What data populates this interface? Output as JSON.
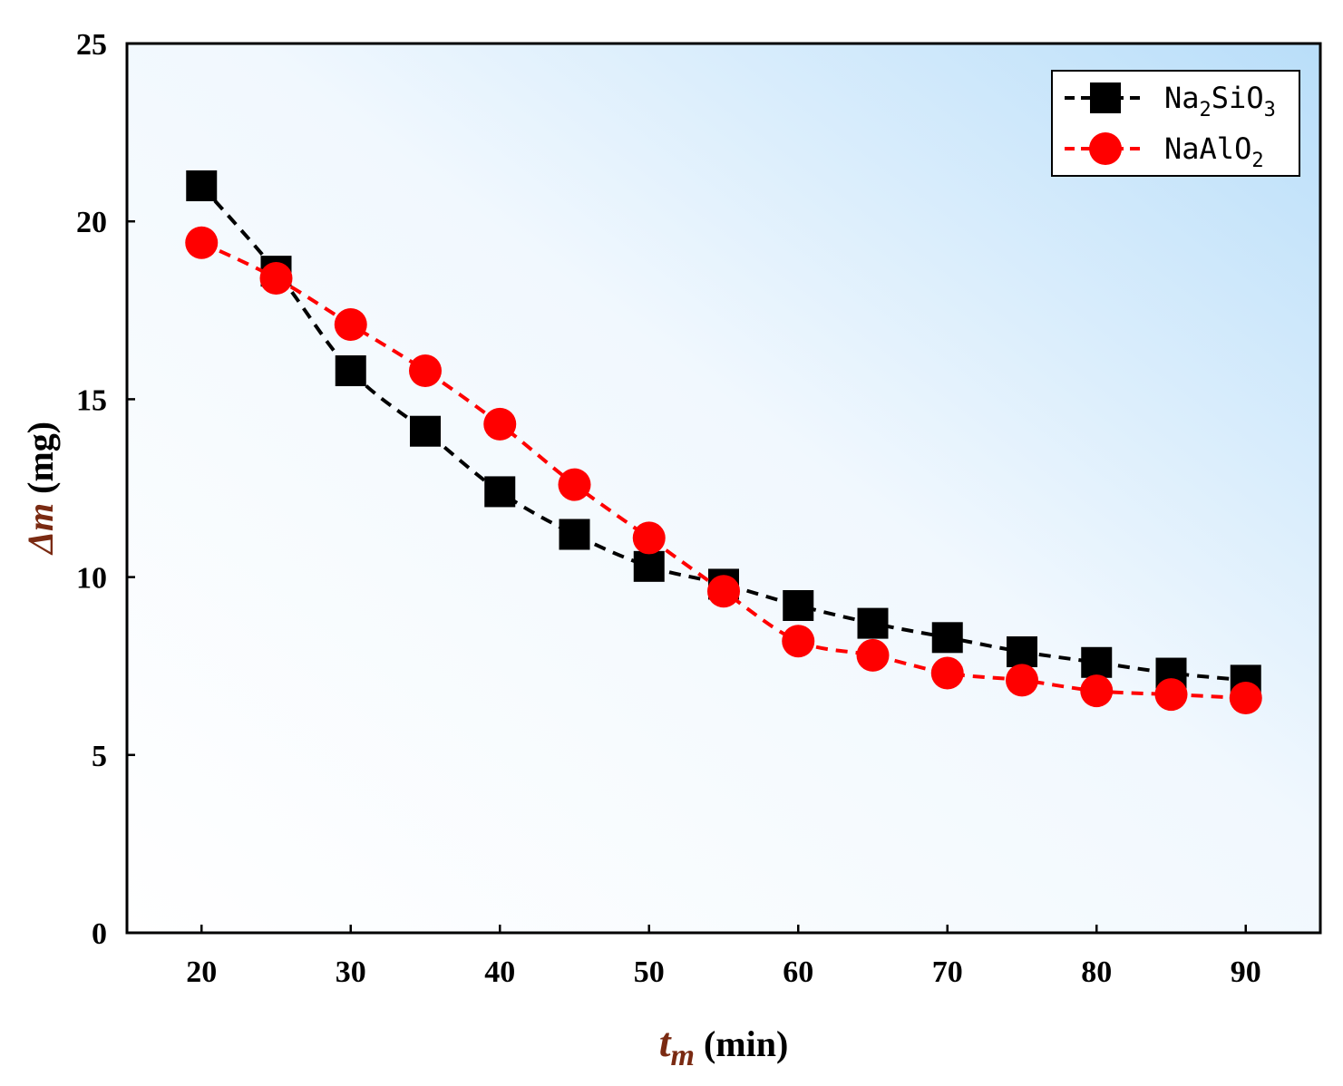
{
  "chart_data": {
    "type": "line",
    "title": "",
    "xlabel": {
      "var": "t",
      "sub": "m",
      "unit": " (min)"
    },
    "ylabel": {
      "var": "Δm",
      "unit": " (mg)"
    },
    "xlim": [
      15,
      95
    ],
    "ylim": [
      0,
      25
    ],
    "xticks": [
      20,
      30,
      40,
      50,
      60,
      70,
      80,
      90
    ],
    "yticks": [
      0,
      5,
      10,
      15,
      20,
      25
    ],
    "legend_position": "top-right",
    "x": [
      20,
      25,
      30,
      35,
      40,
      45,
      50,
      55,
      60,
      65,
      70,
      75,
      80,
      85,
      90
    ],
    "series": [
      {
        "name": "Na2SiO3",
        "legend_parts": [
          {
            "t": "Na",
            "sub": false
          },
          {
            "t": "2",
            "sub": true
          },
          {
            "t": "SiO",
            "sub": false
          },
          {
            "t": "3",
            "sub": true
          }
        ],
        "marker": "square",
        "color": "#000000",
        "values": [
          21.0,
          18.6,
          15.8,
          14.1,
          12.4,
          11.2,
          10.3,
          9.8,
          9.2,
          8.7,
          8.3,
          7.9,
          7.6,
          7.3,
          7.1
        ]
      },
      {
        "name": "NaAlO2",
        "legend_parts": [
          {
            "t": "NaAlO",
            "sub": false
          },
          {
            "t": "2",
            "sub": true
          }
        ],
        "marker": "circle",
        "color": "#ff0000",
        "values": [
          19.4,
          18.4,
          17.1,
          15.8,
          14.3,
          12.6,
          11.1,
          9.6,
          8.2,
          7.8,
          7.3,
          7.1,
          6.8,
          6.7,
          6.6
        ]
      }
    ]
  }
}
